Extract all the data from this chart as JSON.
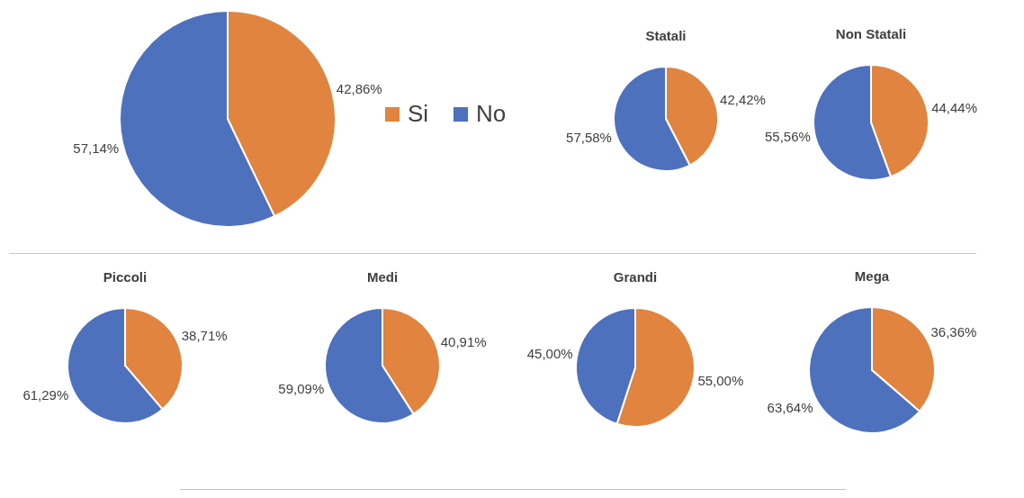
{
  "chart_data": [
    {
      "type": "pie",
      "categories": [
        "Si",
        "No"
      ],
      "values": [
        42.86,
        57.14
      ],
      "colors": [
        "#e0843f",
        "#4e71be"
      ],
      "value_labels": [
        "42,86%",
        "57,14%"
      ],
      "legend": "right"
    },
    {
      "type": "pie",
      "title": "Statali",
      "categories": [
        null,
        null
      ],
      "values": [
        42.42,
        57.58
      ],
      "colors": [
        "#e0843f",
        "#4e71be"
      ],
      "value_labels": [
        "42,42%",
        "57,58%"
      ]
    },
    {
      "type": "pie",
      "title": "Non Statali",
      "categories": [
        null,
        null
      ],
      "values": [
        44.44,
        55.56
      ],
      "colors": [
        "#e0843f",
        "#4e71be"
      ],
      "value_labels": [
        "44,44%",
        "55,56%"
      ]
    },
    {
      "type": "pie",
      "title": "Piccoli",
      "categories": [
        null,
        null
      ],
      "values": [
        38.71,
        61.29
      ],
      "colors": [
        "#e0843f",
        "#4e71be"
      ],
      "value_labels": [
        "38,71%",
        "61,29%"
      ]
    },
    {
      "type": "pie",
      "title": "Medi",
      "categories": [
        null,
        null
      ],
      "values": [
        40.91,
        59.09
      ],
      "colors": [
        "#e0843f",
        "#4e71be"
      ],
      "value_labels": [
        "40,91%",
        "59,09%"
      ]
    },
    {
      "type": "pie",
      "title": "Grandi",
      "categories": [
        null,
        null
      ],
      "values": [
        55.0,
        45.0
      ],
      "colors": [
        "#e0843f",
        "#4e71be"
      ],
      "value_labels": [
        "55,00%",
        "45,00%"
      ]
    },
    {
      "type": "pie",
      "title": "Mega",
      "categories": [
        null,
        null
      ],
      "values": [
        36.36,
        63.64
      ],
      "colors": [
        "#e0843f",
        "#4e71be"
      ],
      "value_labels": [
        "36,36%",
        "63,64%"
      ]
    }
  ]
}
